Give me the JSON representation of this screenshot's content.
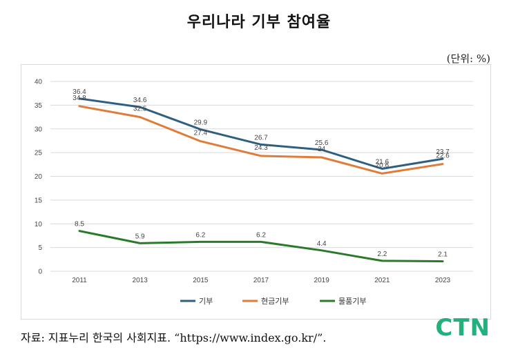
{
  "title": "우리나라 기부 참여율",
  "unit": "(단위: %)",
  "source": "자료: 지표누리 한국의 사회지표. “https://www.index.go.kr/”.",
  "logo": "CTN",
  "chart_data": {
    "type": "line",
    "x": [
      "2011",
      "2013",
      "2015",
      "2017",
      "2019",
      "2021",
      "2023"
    ],
    "ylim": [
      0,
      40
    ],
    "yticks": [
      0,
      5,
      10,
      15,
      20,
      25,
      30,
      35,
      40
    ],
    "grid": true,
    "legend_position": "bottom",
    "series": [
      {
        "name": "기부",
        "color": "#2e5f80",
        "values": [
          36.4,
          34.6,
          29.9,
          26.7,
          25.6,
          21.6,
          23.7
        ],
        "labels": [
          "36.4",
          "34.6",
          "29.9",
          "26.7",
          "25.6",
          "21.6",
          "23.7"
        ]
      },
      {
        "name": "현금기부",
        "color": "#e07b39",
        "values": [
          34.8,
          32.5,
          27.4,
          24.3,
          24.0,
          20.6,
          22.6
        ],
        "labels": [
          "34.8",
          "32.5",
          "27.4",
          "24.3",
          "24",
          "20.6",
          "22.6"
        ]
      },
      {
        "name": "물품기부",
        "color": "#2a7a2a",
        "values": [
          8.5,
          5.9,
          6.2,
          6.2,
          4.4,
          2.2,
          2.1
        ],
        "labels": [
          "8.5",
          "5.9",
          "6.2",
          "6.2",
          "4.4",
          "2.2",
          "2.1"
        ]
      }
    ]
  }
}
